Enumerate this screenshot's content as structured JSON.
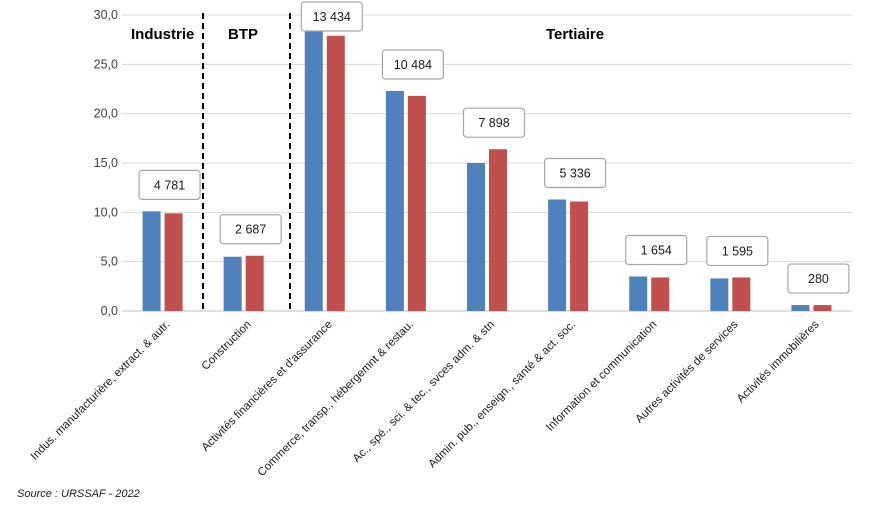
{
  "chart_data": {
    "type": "bar",
    "categories": [
      "Indus. manufacturière, extract. & autr.",
      "Construction",
      "Activités financières et d'assurance",
      "Commerce, transp., hébergemnt & restau.",
      "Ac., spé., sci. & tec., svces adm. & stn",
      "Admin. pub., enseign., santé & act. soc.",
      "Information et communication",
      "Autres activités de services",
      "Activités immobilières"
    ],
    "series": [
      {
        "color": "#4f81bd",
        "values": [
          10.1,
          5.5,
          28.4,
          22.3,
          15.0,
          11.3,
          3.5,
          3.3,
          0.6
        ]
      },
      {
        "color": "#c0504d",
        "values": [
          9.9,
          5.6,
          27.9,
          21.8,
          16.4,
          11.1,
          3.4,
          3.4,
          0.6
        ]
      }
    ],
    "callouts": [
      "4 781",
      "2 687",
      "13 434",
      "10 484",
      "7 898",
      "5 336",
      "1 654",
      "1 595",
      "280"
    ],
    "sections": [
      {
        "label": "Industrie"
      },
      {
        "label": "BTP"
      },
      {
        "label": "Tertiaire"
      }
    ],
    "ylim": [
      0,
      30
    ],
    "yticks": [
      "0,0",
      "5,0",
      "10,0",
      "15,0",
      "20,0",
      "25,0",
      "30,0"
    ],
    "grid": true
  },
  "source": "Source : URSSAF  - 2022"
}
